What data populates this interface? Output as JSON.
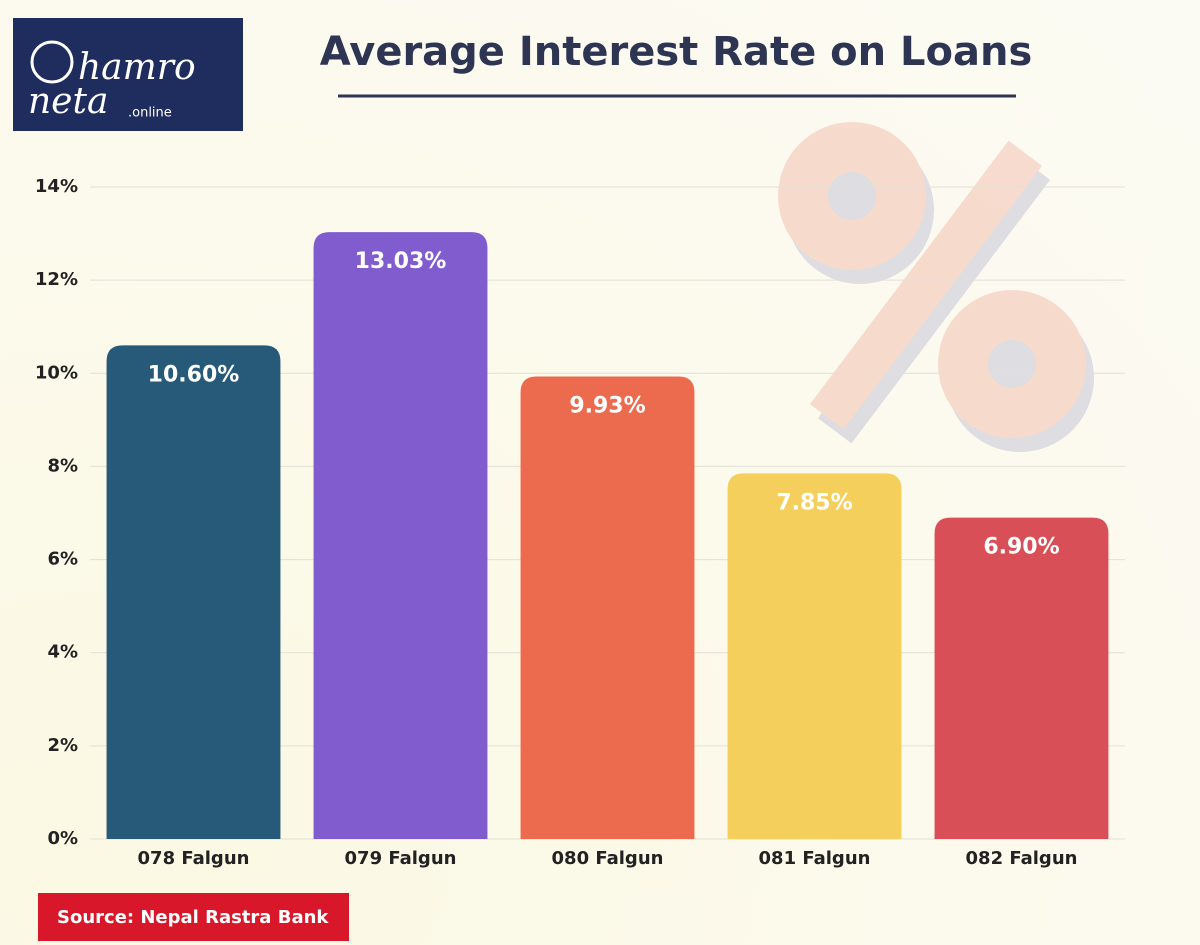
{
  "logo": {
    "line1": "hamro",
    "line2": "neta",
    "suffix": ".online"
  },
  "source": "Source: Nepal Rastra Bank",
  "chart_data": {
    "type": "bar",
    "title": "Average Interest Rate on Loans",
    "categories": [
      "078 Falgun",
      "079 Falgun",
      "080 Falgun",
      "081 Falgun",
      "082 Falgun"
    ],
    "values": [
      10.6,
      13.03,
      9.93,
      7.85,
      6.9
    ],
    "value_labels": [
      "10.60%",
      "13.03%",
      "9.93%",
      "7.85%",
      "6.90%"
    ],
    "colors": [
      "#265a78",
      "#805ccf",
      "#ec6b4e",
      "#f5cf5c",
      "#d94f57"
    ],
    "ylim": [
      0,
      14
    ],
    "yticks": [
      {
        "value": 0,
        "label": "0%"
      },
      {
        "value": 2,
        "label": "2%"
      },
      {
        "value": 4,
        "label": "4%"
      },
      {
        "value": 6,
        "label": "6%"
      },
      {
        "value": 8,
        "label": "8%"
      },
      {
        "value": 10,
        "label": "10%"
      },
      {
        "value": 12,
        "label": "12%"
      },
      {
        "value": 14,
        "label": "14%"
      }
    ],
    "grid": true
  }
}
